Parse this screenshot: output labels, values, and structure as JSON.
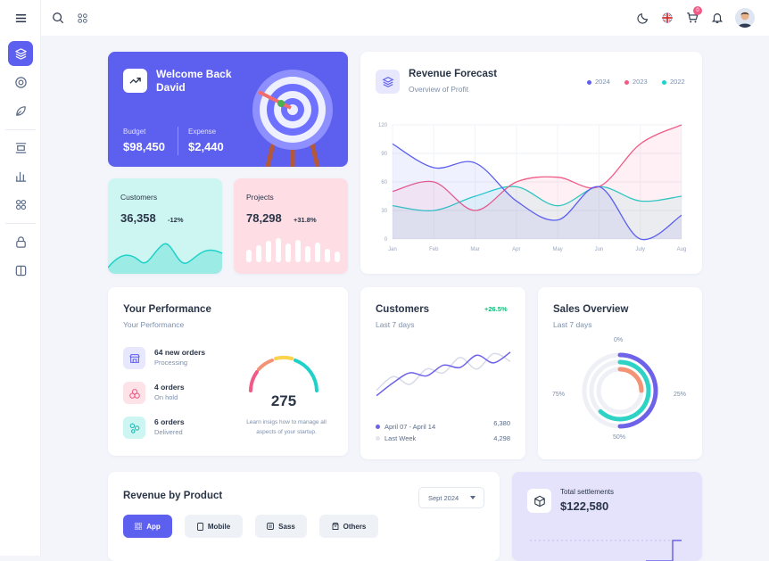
{
  "topbar": {
    "flag": "uk-flag",
    "cart_badge": "0"
  },
  "welcome": {
    "title_line1": "Welcome Back",
    "title_line2": "David",
    "budget_label": "Budget",
    "budget_value": "$98,450",
    "expense_label": "Expense",
    "expense_value": "$2,440"
  },
  "customers_stat": {
    "label": "Customers",
    "value": "36,358",
    "change": "-12%"
  },
  "projects_stat": {
    "label": "Projects",
    "value": "78,298",
    "change": "+31.8%"
  },
  "revenue_forecast": {
    "title": "Revenue Forecast",
    "subtitle": "Overview of Profit"
  },
  "chart_data": [
    {
      "type": "area",
      "title": "Revenue Forecast",
      "categories": [
        "Jan",
        "Feb",
        "Mar",
        "Apr",
        "May",
        "Jun",
        "July",
        "Aug"
      ],
      "ylim": [
        0,
        120
      ],
      "yticks": [
        0,
        30,
        60,
        90,
        120
      ],
      "grid": true,
      "legend": "top-right",
      "series": [
        {
          "name": "2024",
          "color": "#5d5fef",
          "values": [
            100,
            75,
            80,
            40,
            20,
            55,
            0,
            25
          ]
        },
        {
          "name": "2023",
          "color": "#ef5b86",
          "values": [
            50,
            60,
            30,
            60,
            65,
            55,
            100,
            120
          ]
        },
        {
          "name": "2022",
          "color": "#1fd1c8",
          "values": [
            35,
            30,
            45,
            55,
            35,
            55,
            40,
            45
          ]
        }
      ]
    },
    {
      "type": "line",
      "title": "Customers",
      "series": [
        {
          "name": "April 07 - April 14",
          "color": "#6d62e8",
          "values": [
            5,
            22,
            35,
            31,
            45,
            42,
            58,
            48,
            62
          ]
        },
        {
          "name": "Last Week",
          "color": "#d7dbe8",
          "values": [
            12,
            30,
            20,
            40,
            35,
            55,
            40,
            60,
            50
          ]
        }
      ]
    },
    {
      "type": "donut",
      "title": "Sales Overview",
      "labels": [
        "0%",
        "25%",
        "50%",
        "75%"
      ],
      "rings": [
        {
          "color": "#6d62e8",
          "fraction": 0.5
        },
        {
          "color": "#2ed3c6",
          "fraction": 0.62
        },
        {
          "color": "#f39477",
          "fraction": 0.25
        }
      ]
    }
  ],
  "performance": {
    "title": "Your Performance",
    "subtitle": "Your Performance",
    "items": [
      {
        "title": "64 new orders",
        "status": "Processing"
      },
      {
        "title": "4 orders",
        "status": "On hold"
      },
      {
        "title": "6 orders",
        "status": "Delivered"
      }
    ],
    "gauge_value": "275",
    "gauge_text_1": "Learn insigs how to manage all",
    "gauge_text_2": "aspects of your startup."
  },
  "customers_card": {
    "title": "Customers",
    "subtitle": "Last 7 days",
    "change": "+26.5%",
    "legend": [
      {
        "label": "April 07 - April 14",
        "value": "6,380"
      },
      {
        "label": "Last Week",
        "value": "4,298"
      }
    ]
  },
  "sales": {
    "title": "Sales Overview",
    "subtitle": "Last 7 days",
    "l0": "0%",
    "l25": "25%",
    "l50": "50%",
    "l75": "75%"
  },
  "revenue_product": {
    "title": "Revenue by Product",
    "select": "Sept 2024",
    "tabs": [
      "App",
      "Mobile",
      "Sass",
      "Others"
    ]
  },
  "settlements": {
    "label": "Total settlements",
    "value": "$122,580"
  },
  "colors": {
    "primary": "#5d5fef",
    "teal": "#1fd1c8",
    "pink": "#ef5b86"
  }
}
